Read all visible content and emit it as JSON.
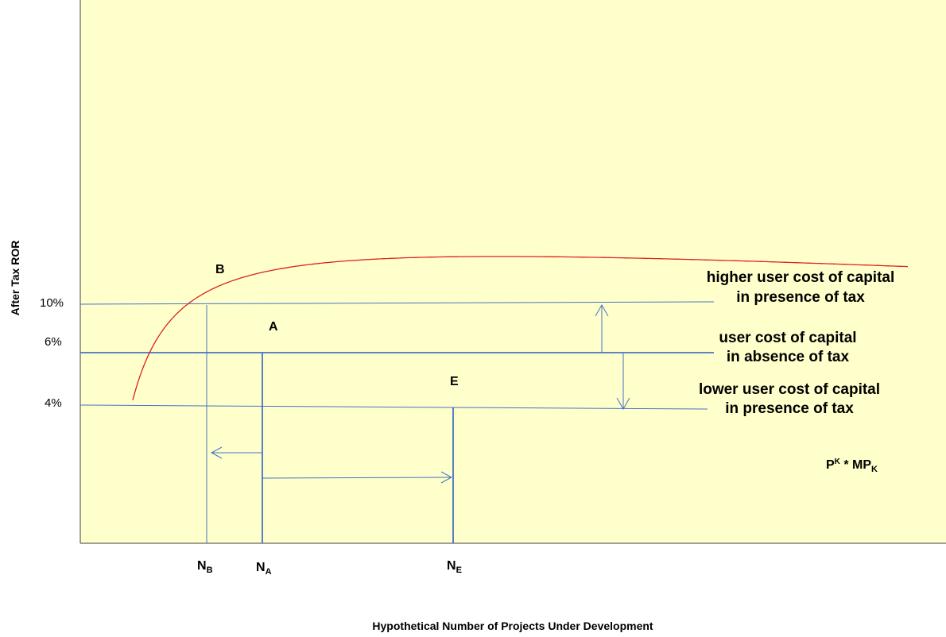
{
  "axes": {
    "y_title": "After Tax ROR",
    "x_title": "Hypothetical  Number of Projects Under  Development"
  },
  "y_ticks": [
    "10%",
    "6%",
    "4%"
  ],
  "points": {
    "b": "B",
    "a": "A",
    "e": "E"
  },
  "annotations": {
    "higher_line1": "higher user cost of  capital",
    "higher_line2": "in presence of tax",
    "base_line1": "user cost of  capital",
    "base_line2": "in absence of tax",
    "lower_line1": "lower user cost of  capital",
    "lower_line2": "in presence of tax"
  },
  "x_marks": {
    "nb": {
      "main": "N",
      "sub": "B"
    },
    "na": {
      "main": "N",
      "sub": "A"
    },
    "ne": {
      "main": "N",
      "sub": "E"
    }
  },
  "curve_label": {
    "p": "P",
    "p_sup": "K",
    "mid": " * MP",
    "mp_sub": "K"
  },
  "colors": {
    "panel": "#FFFFCC",
    "curve": "#E0201E",
    "lines": "#4472C4",
    "axis": "#404040"
  }
}
